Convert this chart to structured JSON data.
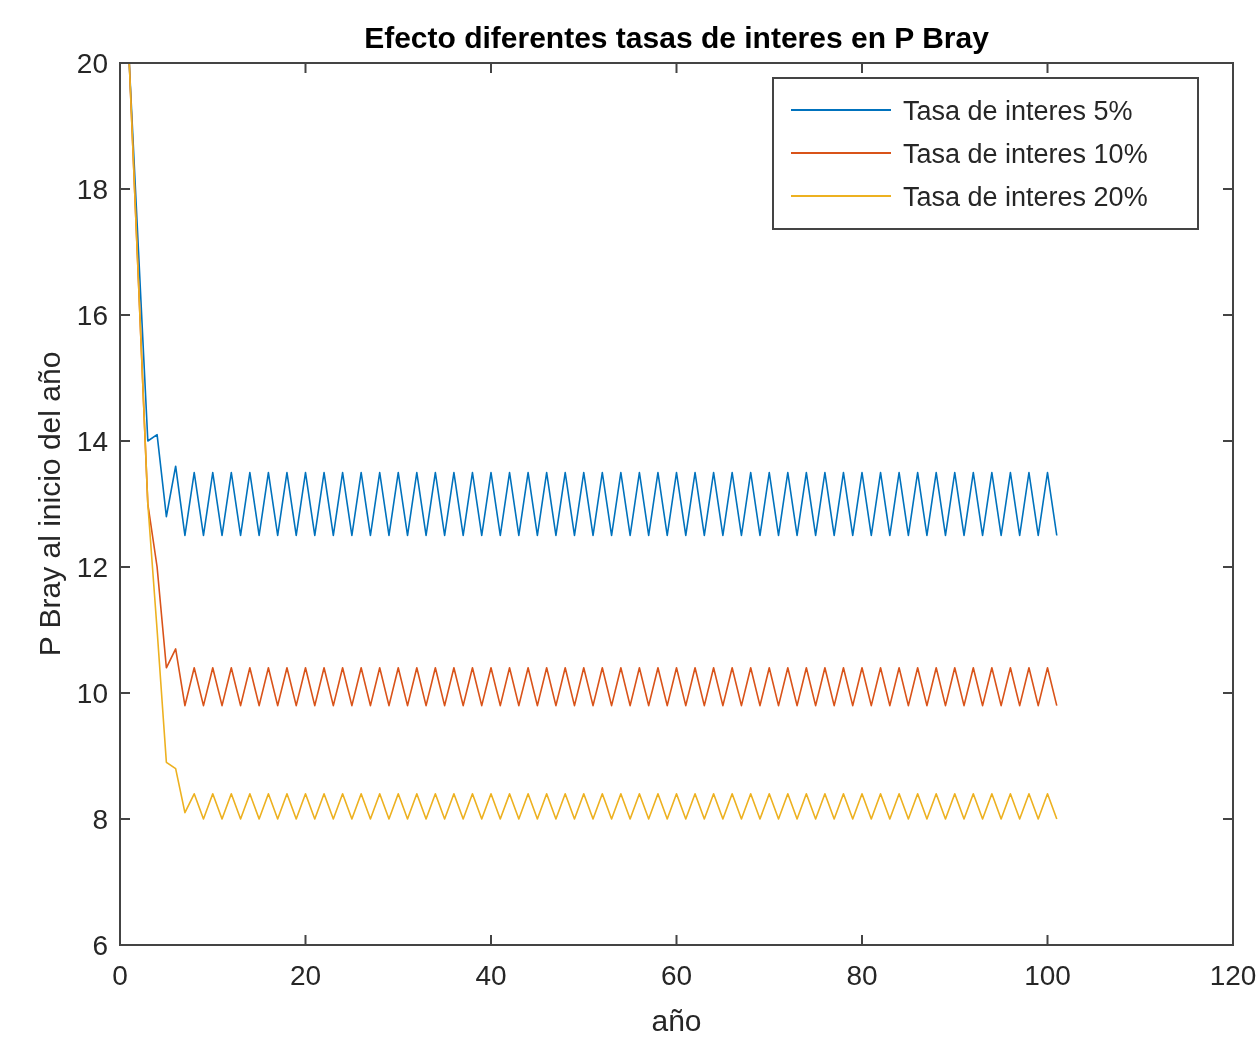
{
  "chart_data": {
    "type": "line",
    "title": "Efecto diferentes tasas de interes en P Bray",
    "xlabel": "año",
    "ylabel": "P Bray al inicio del año",
    "x": [
      1,
      2,
      3,
      4,
      5,
      6,
      7,
      8,
      9,
      10,
      11,
      12,
      13,
      14,
      15,
      16,
      17,
      18,
      19,
      20,
      21,
      22,
      23,
      24,
      25,
      26,
      27,
      28,
      29,
      30,
      31,
      32,
      33,
      34,
      35,
      36,
      37,
      38,
      39,
      40,
      41,
      42,
      43,
      44,
      45,
      46,
      47,
      48,
      49,
      50,
      51,
      52,
      53,
      54,
      55,
      56,
      57,
      58,
      59,
      60,
      61,
      62,
      63,
      64,
      65,
      66,
      67,
      68,
      69,
      70,
      71,
      72,
      73,
      74,
      75,
      76,
      77,
      78,
      79,
      80,
      81,
      82,
      83,
      84,
      85,
      86,
      87,
      88,
      89,
      90,
      91,
      92,
      93,
      94,
      95,
      96,
      97,
      98,
      99,
      100,
      101
    ],
    "series": [
      {
        "name": "Tasa de interes 5%",
        "color": "#0072bd",
        "values": [
          20,
          17,
          14,
          14.1,
          12.8,
          13.6,
          12.5,
          13.5,
          12.5,
          13.5,
          12.5,
          13.5,
          12.5,
          13.5,
          12.5,
          13.5,
          12.5,
          13.5,
          12.5,
          13.5,
          12.5,
          13.5,
          12.5,
          13.5,
          12.5,
          13.5,
          12.5,
          13.5,
          12.5,
          13.5,
          12.5,
          13.5,
          12.5,
          13.5,
          12.5,
          13.5,
          12.5,
          13.5,
          12.5,
          13.5,
          12.5,
          13.5,
          12.5,
          13.5,
          12.5,
          13.5,
          12.5,
          13.5,
          12.5,
          13.5,
          12.5,
          13.5,
          12.5,
          13.5,
          12.5,
          13.5,
          12.5,
          13.5,
          12.5,
          13.5,
          12.5,
          13.5,
          12.5,
          13.5,
          12.5,
          13.5,
          12.5,
          13.5,
          12.5,
          13.5,
          12.5,
          13.5,
          12.5,
          13.5,
          12.5,
          13.5,
          12.5,
          13.5,
          12.5,
          13.5,
          12.5,
          13.5,
          12.5,
          13.5,
          12.5,
          13.5,
          12.5,
          13.5,
          12.5,
          13.5,
          12.5,
          13.5,
          12.5,
          13.5,
          12.5,
          13.5,
          12.5,
          13.5,
          12.5,
          13.5,
          12.5
        ]
      },
      {
        "name": "Tasa de interes 10%",
        "color": "#d95319",
        "values": [
          20,
          16.5,
          13,
          12,
          10.4,
          10.7,
          9.8,
          10.4,
          9.8,
          10.4,
          9.8,
          10.4,
          9.8,
          10.4,
          9.8,
          10.4,
          9.8,
          10.4,
          9.8,
          10.4,
          9.8,
          10.4,
          9.8,
          10.4,
          9.8,
          10.4,
          9.8,
          10.4,
          9.8,
          10.4,
          9.8,
          10.4,
          9.8,
          10.4,
          9.8,
          10.4,
          9.8,
          10.4,
          9.8,
          10.4,
          9.8,
          10.4,
          9.8,
          10.4,
          9.8,
          10.4,
          9.8,
          10.4,
          9.8,
          10.4,
          9.8,
          10.4,
          9.8,
          10.4,
          9.8,
          10.4,
          9.8,
          10.4,
          9.8,
          10.4,
          9.8,
          10.4,
          9.8,
          10.4,
          9.8,
          10.4,
          9.8,
          10.4,
          9.8,
          10.4,
          9.8,
          10.4,
          9.8,
          10.4,
          9.8,
          10.4,
          9.8,
          10.4,
          9.8,
          10.4,
          9.8,
          10.4,
          9.8,
          10.4,
          9.8,
          10.4,
          9.8,
          10.4,
          9.8,
          10.4,
          9.8,
          10.4,
          9.8,
          10.4,
          9.8,
          10.4,
          9.8,
          10.4,
          9.8,
          10.4,
          9.8
        ]
      },
      {
        "name": "Tasa de interes 20%",
        "color": "#edb120",
        "values": [
          20,
          16.5,
          13,
          11,
          8.9,
          8.8,
          8.1,
          8.4,
          8,
          8.4,
          8,
          8.4,
          8,
          8.4,
          8,
          8.4,
          8,
          8.4,
          8,
          8.4,
          8,
          8.4,
          8,
          8.4,
          8,
          8.4,
          8,
          8.4,
          8,
          8.4,
          8,
          8.4,
          8,
          8.4,
          8,
          8.4,
          8,
          8.4,
          8,
          8.4,
          8,
          8.4,
          8,
          8.4,
          8,
          8.4,
          8,
          8.4,
          8,
          8.4,
          8,
          8.4,
          8,
          8.4,
          8,
          8.4,
          8,
          8.4,
          8,
          8.4,
          8,
          8.4,
          8,
          8.4,
          8,
          8.4,
          8,
          8.4,
          8,
          8.4,
          8,
          8.4,
          8,
          8.4,
          8,
          8.4,
          8,
          8.4,
          8,
          8.4,
          8,
          8.4,
          8,
          8.4,
          8,
          8.4,
          8,
          8.4,
          8,
          8.4,
          8,
          8.4,
          8,
          8.4,
          8,
          8.4,
          8,
          8.4,
          8,
          8.4,
          8
        ]
      }
    ],
    "xlim": [
      0,
      120
    ],
    "xticks": [
      0,
      20,
      40,
      60,
      80,
      100,
      120
    ],
    "ylim": [
      6,
      20
    ],
    "yticks": [
      6,
      8,
      10,
      12,
      14,
      16,
      18,
      20
    ],
    "grid": false,
    "legend": "top right",
    "marker": "none",
    "line_style": "solid"
  }
}
